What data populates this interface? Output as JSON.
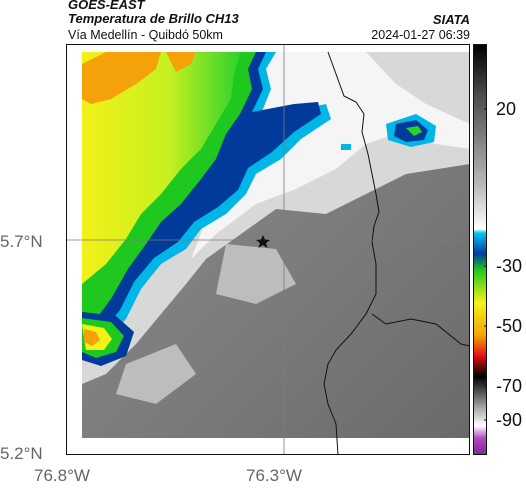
{
  "header": {
    "satellite": "GOES-EAST",
    "product": "Temperatura de Brillo CH13",
    "route": "Vía Medellín - Quibdó 50km",
    "org": "SIATA",
    "datetime": "2024-01-27 06:39"
  },
  "axes": {
    "lat_ticks": [
      "5.7°N",
      "5.2°N"
    ],
    "lon_ticks": [
      "76.8°W",
      "76.3°W"
    ]
  },
  "colorbar": {
    "ticks": [
      "20",
      "-30",
      "-50",
      "-70",
      "-90"
    ]
  },
  "colors": {
    "gray_dark": "#6f6f6f",
    "gray_mid": "#9a9a9a",
    "white": "#ffffff",
    "cyan": "#00b6e6",
    "blue": "#003a9a",
    "green": "#1ec81e",
    "lime": "#a6ef20",
    "yellow": "#f2f218",
    "orange": "#f5a20a",
    "red": "#e01010",
    "magenta": "#b04abf"
  },
  "map": {
    "marker": "star"
  }
}
